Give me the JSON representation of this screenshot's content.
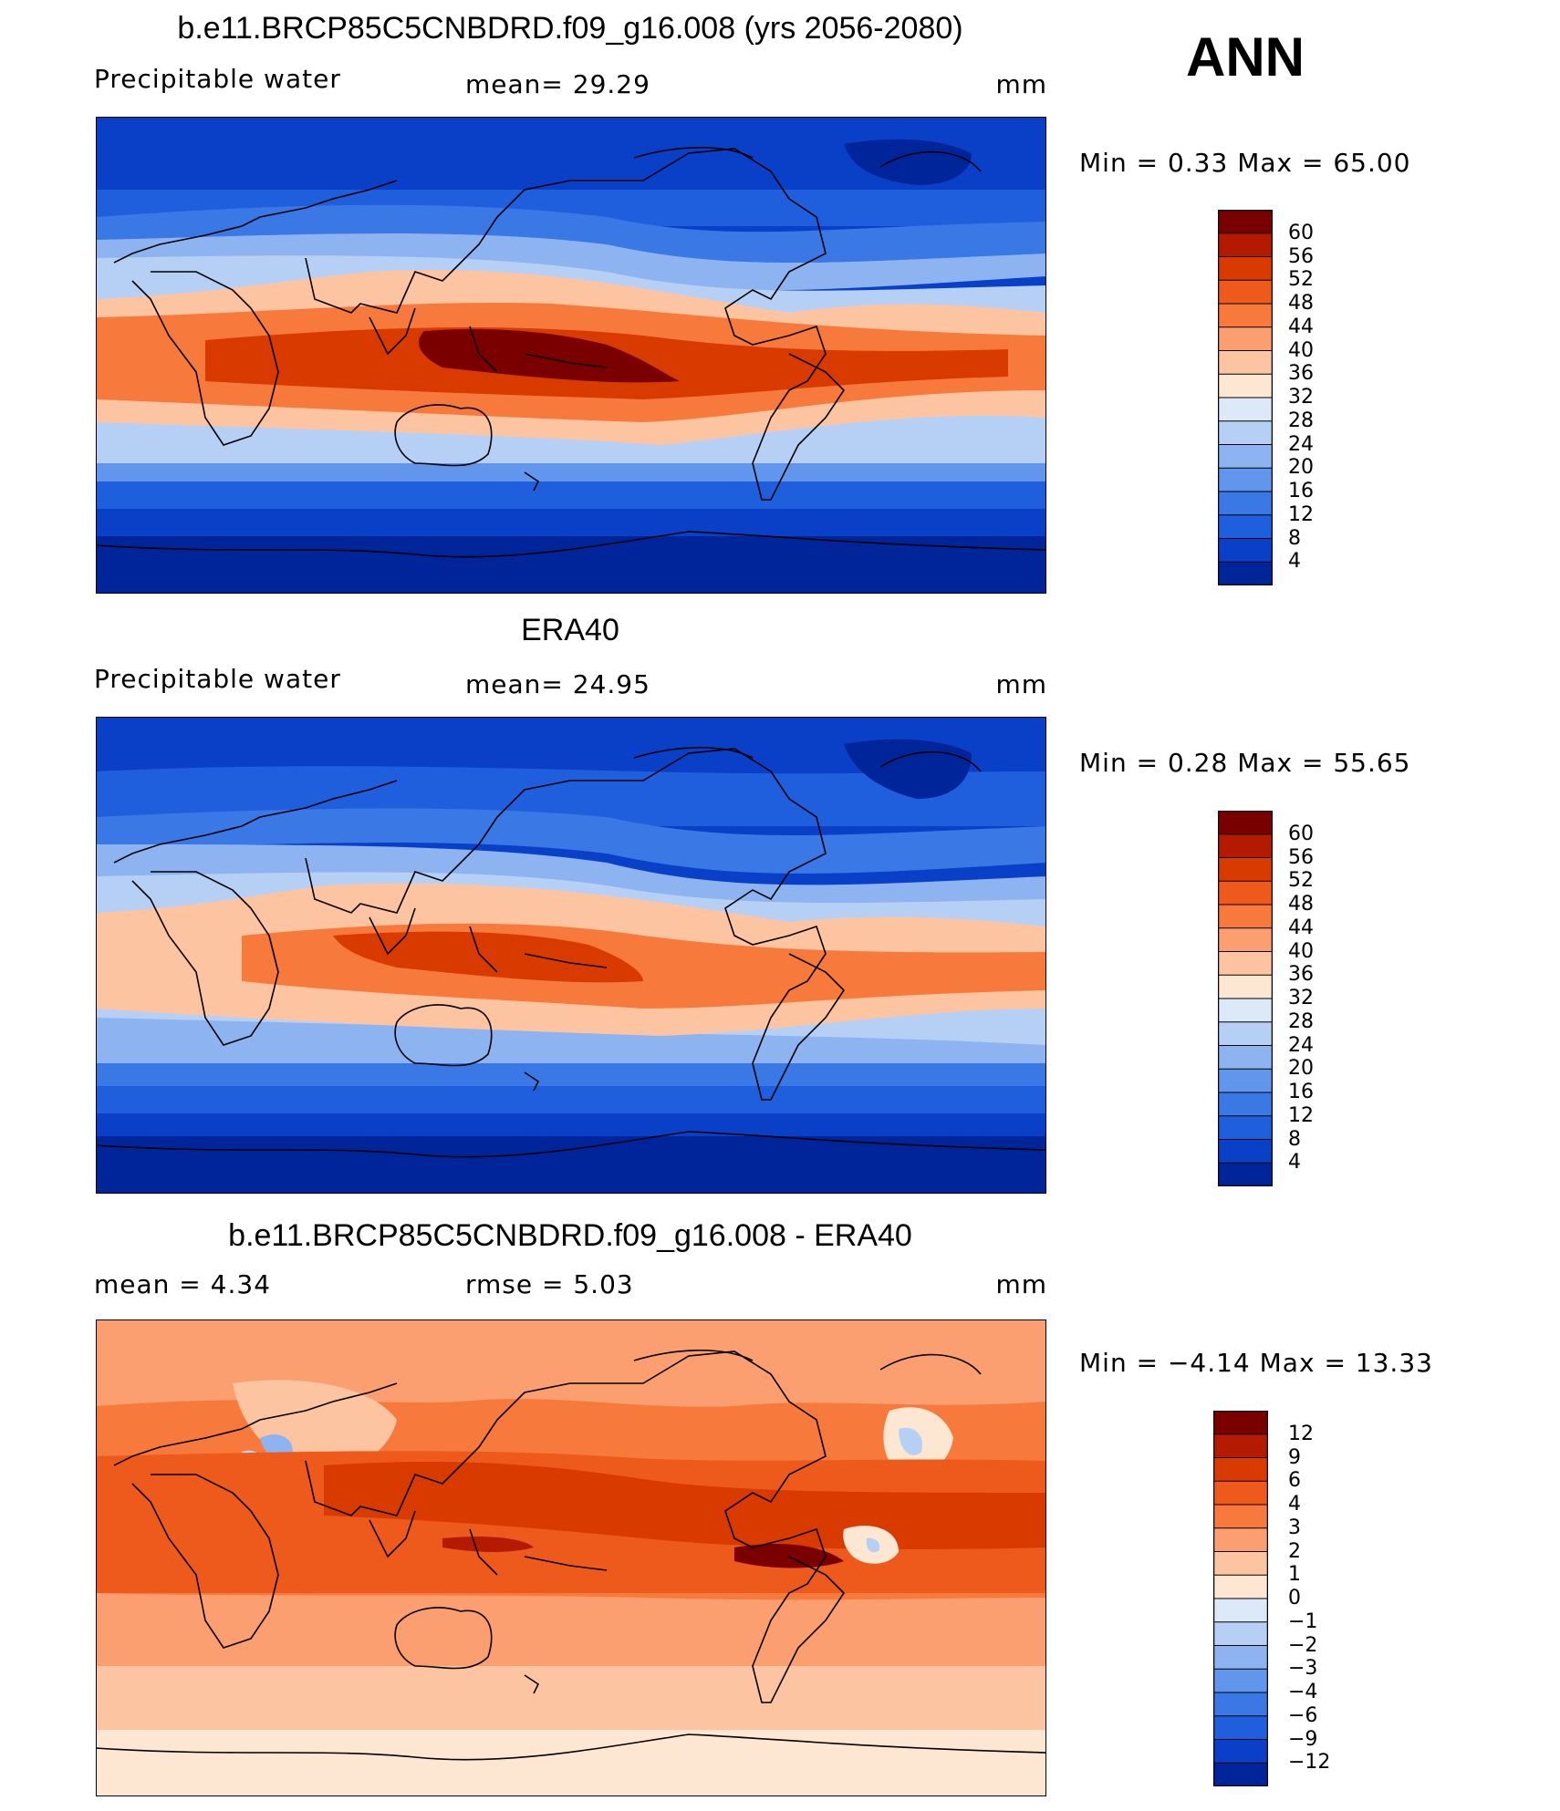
{
  "season": "ANN",
  "panels": [
    {
      "id": "model",
      "title": "b.e11.BRCP85C5CNBDRD.f09_g16.008 (yrs 2056-2080)",
      "left_label": "Precipitable  water",
      "mid_label": "mean=   29.29",
      "units": "mm",
      "minmax": "Min  =      0.33  Max  =      65.00",
      "colorbar_labels": [
        "60",
        "56",
        "52",
        "48",
        "44",
        "40",
        "36",
        "32",
        "28",
        "24",
        "20",
        "16",
        "12",
        "8",
        "4"
      ],
      "colorbar_colors": [
        "#7a0000",
        "#b31a00",
        "#d83a00",
        "#ee5a1c",
        "#f77a3c",
        "#fb9e70",
        "#fdc4a2",
        "#fde6d2",
        "#dbe9f8",
        "#b6d0f5",
        "#8db4f0",
        "#6196ec",
        "#3a78e6",
        "#1f5fde",
        "#0a40c8",
        "#00249a"
      ]
    },
    {
      "id": "obs",
      "title": "ERA40",
      "left_label": "Precipitable  water",
      "mid_label": "mean=   24.95",
      "units": "mm",
      "minmax": "Min  =      0.28  Max  =      55.65",
      "colorbar_labels": [
        "60",
        "56",
        "52",
        "48",
        "44",
        "40",
        "36",
        "32",
        "28",
        "24",
        "20",
        "16",
        "12",
        "8",
        "4"
      ],
      "colorbar_colors": [
        "#7a0000",
        "#b31a00",
        "#d83a00",
        "#ee5a1c",
        "#f77a3c",
        "#fb9e70",
        "#fdc4a2",
        "#fde6d2",
        "#dbe9f8",
        "#b6d0f5",
        "#8db4f0",
        "#6196ec",
        "#3a78e6",
        "#1f5fde",
        "#0a40c8",
        "#00249a"
      ]
    },
    {
      "id": "diff",
      "title": "b.e11.BRCP85C5CNBDRD.f09_g16.008 - ERA40",
      "left_label": "mean  =      4.34",
      "mid_label": "rmse  =      5.03",
      "units": "mm",
      "minmax": "Min  =    −4.14  Max  =      13.33",
      "colorbar_labels": [
        "12",
        "9",
        "6",
        "4",
        "3",
        "2",
        "1",
        "0",
        "−1",
        "−2",
        "−3",
        "−4",
        "−6",
        "−9",
        "−12"
      ],
      "colorbar_colors": [
        "#7a0000",
        "#b31a00",
        "#d83a00",
        "#ee5a1c",
        "#f77a3c",
        "#fb9e70",
        "#fdc4a2",
        "#fde6d2",
        "#dbe9f8",
        "#b6d0f5",
        "#8db4f0",
        "#6196ec",
        "#3a78e6",
        "#1f5fde",
        "#0a40c8",
        "#00249a"
      ]
    }
  ]
}
